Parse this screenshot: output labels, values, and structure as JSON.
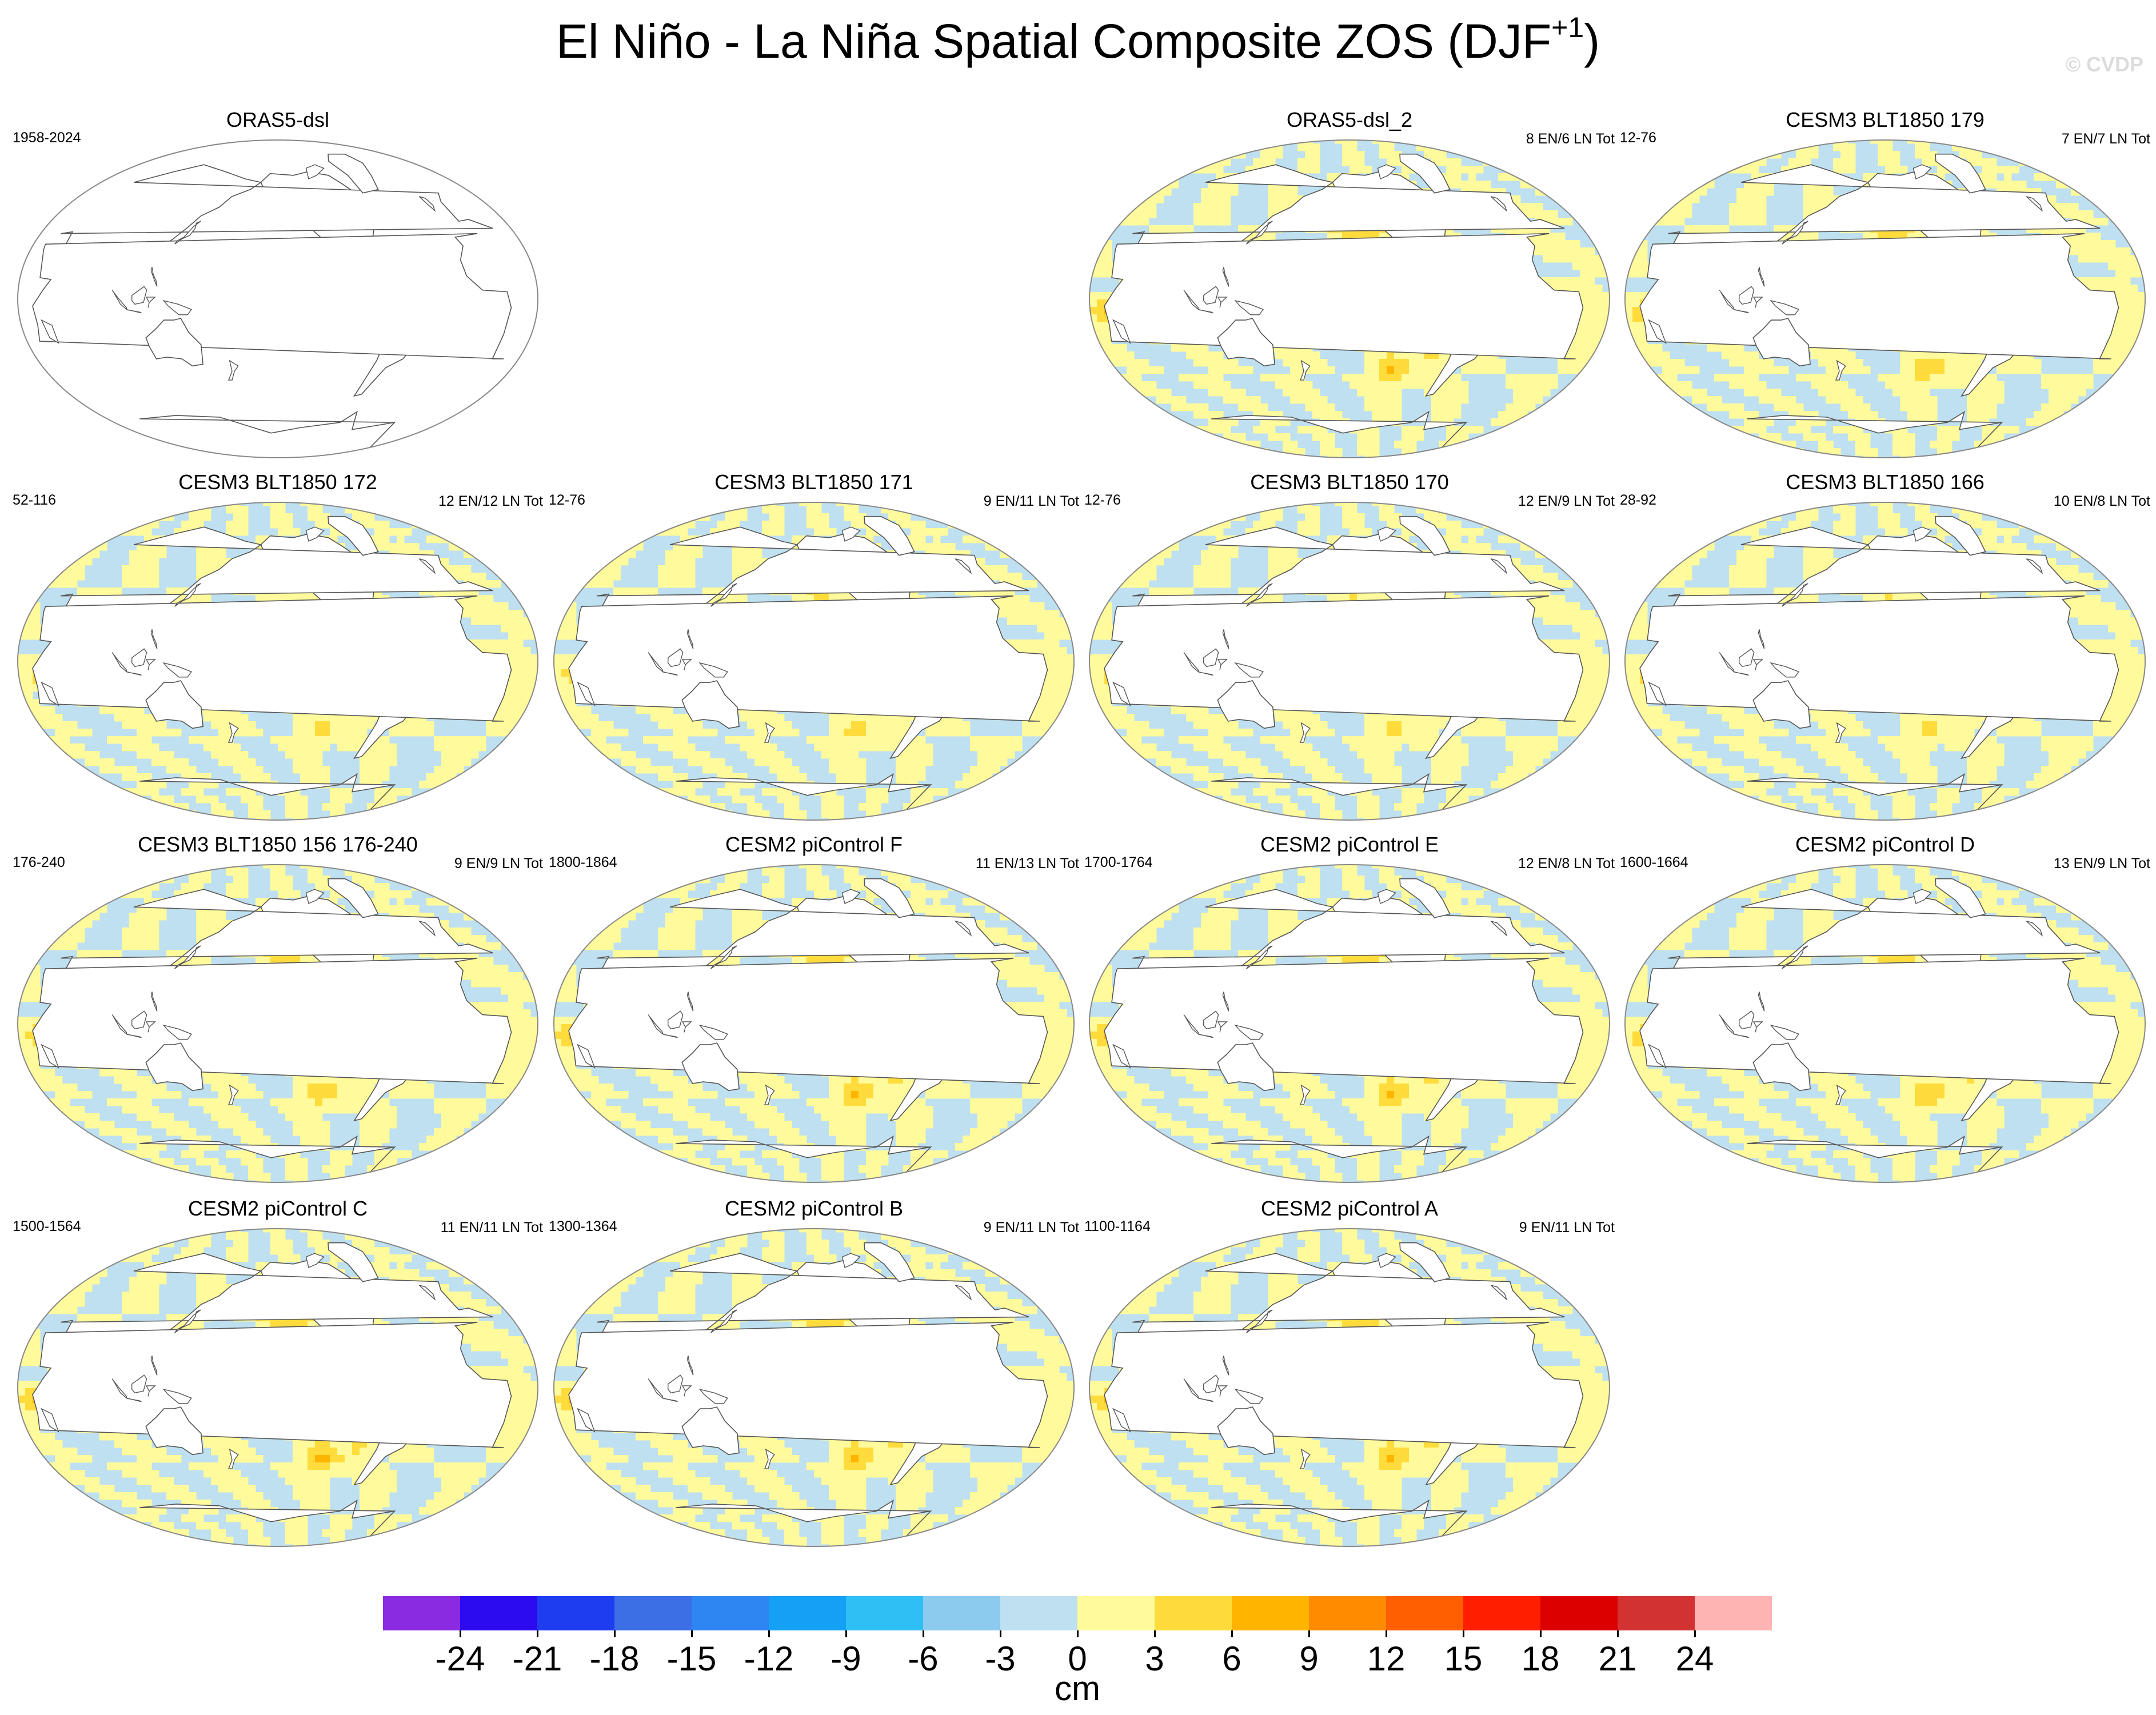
{
  "title": {
    "main": "El Niño - La Niña Spatial Composite ZOS (DJF",
    "superscript": "+1",
    "close": ")"
  },
  "copyright": "© CVDP",
  "map_projection": "Robinson, Pacific-centered",
  "panels": [
    {
      "title": "ORAS5-dsl",
      "left_text": "1958-2024",
      "right_text": "",
      "empty": true,
      "strength": 0,
      "ext": ""
    },
    {
      "title": "ORAS5-dsl_2",
      "left_text": "",
      "right_text": "8 EN/6 LN Tot",
      "empty": false,
      "strength": 1.05,
      "ext": ""
    },
    {
      "title": "CESM3 BLT1850 179",
      "left_text": "12-76",
      "right_text": "7 EN/7 LN Tot",
      "empty": false,
      "strength": 0.85,
      "ext": ""
    },
    {
      "title": "CESM3 BLT1850 172",
      "left_text": "52-116",
      "right_text": "12 EN/12 LN Tot",
      "empty": false,
      "strength": 0.55,
      "ext": ""
    },
    {
      "title": "CESM3 BLT1850 171",
      "left_text": "12-76",
      "right_text": "9 EN/11 LN Tot",
      "empty": false,
      "strength": 0.65,
      "ext": ""
    },
    {
      "title": "CESM3 BLT1850 170",
      "left_text": "12-76",
      "right_text": "12 EN/9 LN Tot",
      "empty": false,
      "strength": 0.6,
      "ext": ""
    },
    {
      "title": "CESM3 BLT1850 166",
      "left_text": "28-92",
      "right_text": "10 EN/8 LN Tot",
      "empty": false,
      "strength": 0.6,
      "ext": ""
    },
    {
      "title": "CESM3 BLT1850 156 176-240",
      "left_text": "176-240",
      "right_text": "9 EN/9 LN Tot",
      "empty": false,
      "strength": 0.8,
      "ext": ""
    },
    {
      "title": "CESM2 piControl F",
      "left_text": "1800-1864",
      "right_text": "11 EN/13 LN Tot",
      "empty": false,
      "strength": 1.05,
      "ext": ""
    },
    {
      "title": "CESM2 piControl E",
      "left_text": "1700-1764",
      "right_text": "12 EN/8 LN Tot",
      "empty": false,
      "strength": 1.05,
      "ext": ""
    },
    {
      "title": "CESM2 piControl D",
      "left_text": "1600-1664",
      "right_text": "13 EN/9 LN Tot",
      "empty": false,
      "strength": 0.95,
      "ext": ""
    },
    {
      "title": "CESM2 piControl C",
      "left_text": "1500-1564",
      "right_text": "11 EN/11 LN Tot",
      "empty": false,
      "strength": 1.1,
      "ext": ""
    },
    {
      "title": "CESM2 piControl B",
      "left_text": "1300-1364",
      "right_text": "9 EN/11 LN Tot",
      "empty": false,
      "strength": 1.05,
      "ext": ""
    },
    {
      "title": "CESM2 piControl A",
      "left_text": "1100-1164",
      "right_text": "9 EN/11 LN Tot",
      "empty": false,
      "strength": 1.0,
      "ext": ""
    }
  ],
  "colorbar": {
    "units": "cm",
    "labels": [
      "-24",
      "-21",
      "-18",
      "-15",
      "-12",
      "-9",
      "-6",
      "-3",
      "0",
      "3",
      "6",
      "9",
      "12",
      "15",
      "18",
      "21",
      "24"
    ],
    "levels": [
      -24,
      -21,
      -18,
      -15,
      -12,
      -9,
      -6,
      -3,
      0,
      3,
      6,
      9,
      12,
      15,
      18,
      21,
      24
    ],
    "colors": [
      "#8a2be2",
      "#2c0bf0",
      "#1e3cf0",
      "#3c6ee6",
      "#2e86f2",
      "#14a0f5",
      "#2ec0f5",
      "#8ccaee",
      "#bee0f0",
      "#fffa9b",
      "#ffdc3c",
      "#ffb400",
      "#ff8c00",
      "#ff5f00",
      "#ff1e00",
      "#dc0000",
      "#d23232",
      "#ffb4b4"
    ]
  }
}
